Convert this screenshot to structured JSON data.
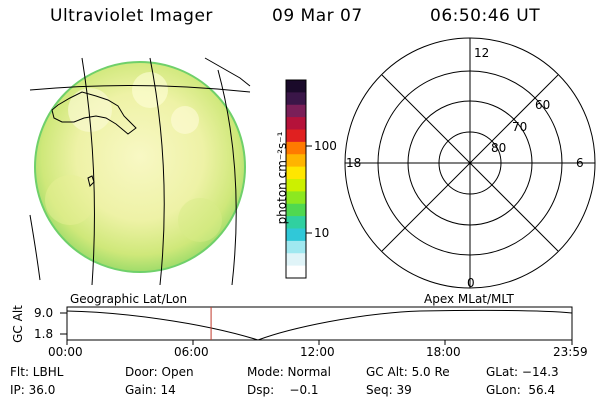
{
  "header": {
    "instrument": "Ultraviolet Imager",
    "date": "09 Mar 07",
    "time": "06:50:46 UT"
  },
  "colorbar": {
    "unit_label": "photon cm⁻²s⁻¹",
    "ticks": [
      "100",
      "10"
    ],
    "colors": [
      "#1a0a2a",
      "#3a1648",
      "#7a1f58",
      "#b5123a",
      "#e02020",
      "#ff7a00",
      "#ffb400",
      "#ffe600",
      "#ccf000",
      "#8ce820",
      "#50d850",
      "#30d0a0",
      "#30c8d8",
      "#a0e8f0",
      "#e0f4f8",
      "#ffffff"
    ]
  },
  "polar": {
    "mlt_labels": {
      "top": "12",
      "left": "18",
      "right": "6",
      "bottom": "0"
    },
    "lat_labels": [
      "60",
      "70",
      "80"
    ]
  },
  "timeline": {
    "left_title": "Geographic Lat/Lon",
    "right_title": "Apex MLat/MLT",
    "axis_label": "GC Alt",
    "y_ticks": [
      "9.0",
      "1.8"
    ],
    "x_ticks": [
      "00:00",
      "06:00",
      "12:00",
      "18:00",
      "23:59"
    ],
    "current_time_fraction": 0.2853,
    "curve_color": "#000000",
    "marker_color": "#c0392b"
  },
  "info": {
    "filter": "Flt: LBHL",
    "ip": "IP: 36.0",
    "door": "Door: Open",
    "gain": "Gain: 14",
    "mode": "Mode: Normal",
    "dsp": "Dsp:    −0.1",
    "gc_alt": "GC Alt: 5.0 Re",
    "seq": "Seq: 39",
    "glat": "GLat: −14.3",
    "glon": "GLon:  56.4"
  }
}
